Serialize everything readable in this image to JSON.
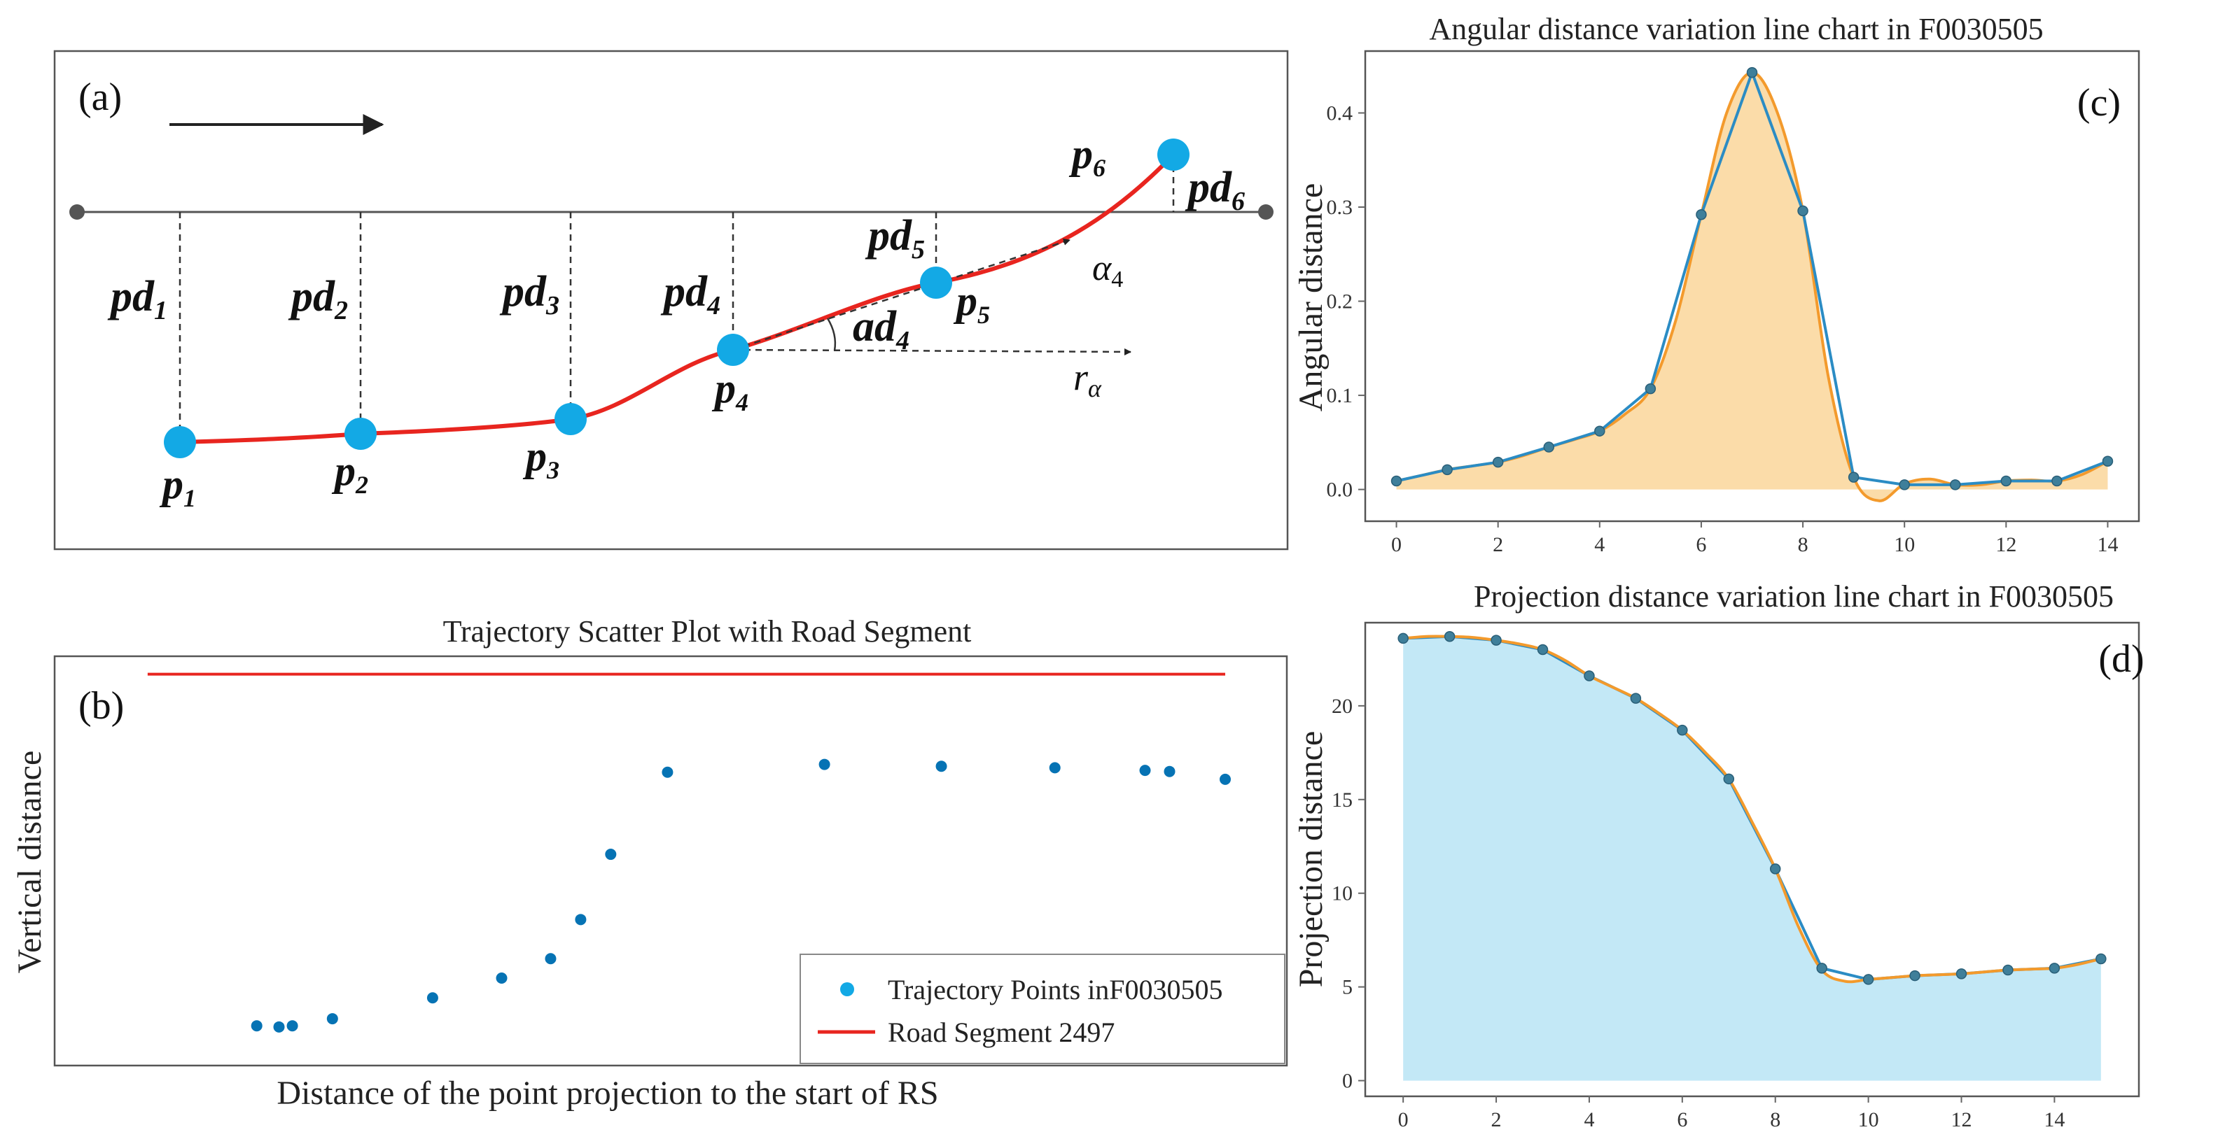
{
  "colors": {
    "road": "#e8251f",
    "point": "#13a9e5",
    "scatter_point": "#0673b4",
    "line_blue": "#2b8cc4",
    "line_orange": "#f39a2c",
    "fill_orange": "#fbdca9",
    "fill_blue": "#c3e8f6",
    "marker": "#3f7f9a"
  },
  "panel_a": {
    "label": "(a)",
    "points": [
      "p1",
      "p2",
      "p3",
      "p4",
      "p5",
      "p6"
    ],
    "proj_labels": [
      "pd1",
      "pd2",
      "pd3",
      "pd4",
      "pd5",
      "pd6"
    ],
    "angle_label": "ad4",
    "alpha_label": "α4",
    "ref_label": "rα"
  },
  "chart_data": [
    {
      "id": "b",
      "type": "scatter",
      "label": "(b)",
      "title": "Trajectory Scatter Plot with Road Segment",
      "xlabel": "Distance of the point projection to the start of RS",
      "ylabel": "Vertical distance",
      "xlim": [
        0,
        100
      ],
      "ylim": [
        0,
        100
      ],
      "grid": false,
      "series": [
        {
          "name": "Trajectory Points inF0030505",
          "kind": "points",
          "x": [
            13,
            15,
            16.2,
            19.8,
            28.8,
            35,
            39.4,
            42.1,
            44.8,
            49.9,
            64,
            74.5,
            84.7,
            92.8,
            95,
            100
          ],
          "y": [
            5.4,
            5.1,
            5.4,
            7.3,
            12.9,
            18.2,
            23.4,
            33.9,
            51.4,
            73.4,
            75.5,
            75.0,
            74.6,
            73.9,
            73.6,
            71.5
          ]
        },
        {
          "name": "Road Segment 2497",
          "kind": "line",
          "x": [
            3.2,
            100
          ],
          "y": [
            99.7,
            99.7
          ]
        }
      ],
      "legend": "bottom-right"
    },
    {
      "id": "c",
      "type": "area",
      "label": "(c)",
      "title": "Angular distance variation line chart in F0030505",
      "xlabel": "",
      "ylabel": "Angular distance",
      "xlim": [
        -0.6,
        14.6
      ],
      "ylim": [
        -0.033,
        0.465
      ],
      "xticks": [
        0,
        2,
        4,
        6,
        8,
        10,
        12,
        14
      ],
      "yticks": [
        0.0,
        0.1,
        0.2,
        0.3,
        0.4
      ],
      "ytick_labels": [
        "0.0",
        "0.1",
        "0.2",
        "0.3",
        "0.4"
      ],
      "x": [
        0,
        1,
        2,
        3,
        4,
        5,
        6,
        7,
        8,
        9,
        10,
        11,
        12,
        13,
        14
      ],
      "series": [
        {
          "name": "data",
          "values": [
            0.009,
            0.021,
            0.029,
            0.045,
            0.062,
            0.107,
            0.292,
            0.443,
            0.296,
            0.013,
            0.005,
            0.005,
            0.009,
            0.009,
            0.03
          ]
        },
        {
          "name": "smoothed",
          "x": [
            0,
            0.5,
            1,
            1.5,
            2,
            2.5,
            3,
            3.5,
            4,
            4.5,
            5,
            5.5,
            6,
            6.5,
            7,
            7.5,
            8,
            8.5,
            9,
            9.5,
            10,
            10.5,
            11,
            11.5,
            12,
            12.5,
            13,
            13.5,
            14
          ],
          "values": [
            0.009,
            0.015,
            0.021,
            0.025,
            0.029,
            0.036,
            0.045,
            0.053,
            0.062,
            0.08,
            0.107,
            0.18,
            0.292,
            0.4,
            0.443,
            0.4,
            0.296,
            0.12,
            0.013,
            -0.012,
            0.006,
            0.011,
            0.005,
            0.005,
            0.009,
            0.01,
            0.009,
            0.016,
            0.03
          ]
        }
      ]
    },
    {
      "id": "d",
      "type": "area",
      "label": "(d)",
      "title": "Projection distance variation line chart in F0030505",
      "xlabel": "",
      "ylabel": "Projection distance",
      "xlim": [
        -0.8,
        15.8
      ],
      "ylim": [
        -0.8,
        24.4
      ],
      "xticks": [
        0,
        2,
        4,
        6,
        8,
        10,
        12,
        14
      ],
      "yticks": [
        0,
        5,
        10,
        15,
        20
      ],
      "ytick_labels": [
        "0",
        "5",
        "10",
        "15",
        "20"
      ],
      "x": [
        0,
        1,
        2,
        3,
        4,
        5,
        6,
        7,
        8,
        9,
        10,
        11,
        12,
        13,
        14,
        15
      ],
      "series": [
        {
          "name": "data",
          "values": [
            23.6,
            23.7,
            23.5,
            23.0,
            21.6,
            20.4,
            18.7,
            16.1,
            11.3,
            6.0,
            5.4,
            5.6,
            5.7,
            5.9,
            6.0,
            6.5
          ]
        },
        {
          "name": "smoothed",
          "x": [
            0,
            0.5,
            1,
            1.5,
            2,
            2.5,
            3,
            3.5,
            4,
            4.5,
            5,
            5.5,
            6,
            6.5,
            7,
            7.5,
            8,
            8.5,
            9,
            9.5,
            10,
            10.5,
            11,
            11.5,
            12,
            12.5,
            13,
            13.5,
            14,
            14.5,
            15
          ],
          "values": [
            23.6,
            23.7,
            23.7,
            23.65,
            23.5,
            23.3,
            23.0,
            22.4,
            21.6,
            21.0,
            20.4,
            19.6,
            18.7,
            17.5,
            16.1,
            13.8,
            11.3,
            8.2,
            5.9,
            5.3,
            5.4,
            5.5,
            5.6,
            5.65,
            5.7,
            5.8,
            5.9,
            5.95,
            6.0,
            6.2,
            6.5
          ]
        }
      ]
    }
  ]
}
